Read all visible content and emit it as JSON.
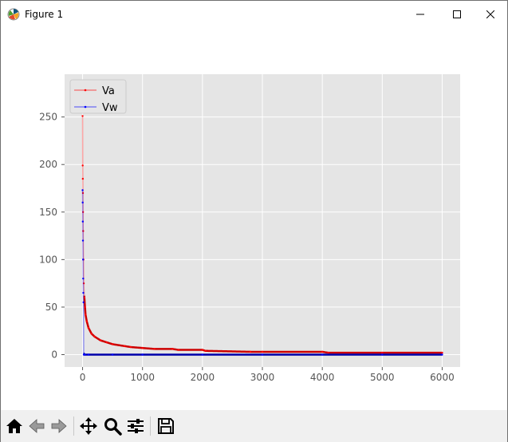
{
  "window": {
    "title": "Figure 1",
    "controls": {
      "minimize": "minimize",
      "maximize": "maximize",
      "close": "close"
    }
  },
  "toolbar": {
    "buttons": [
      {
        "name": "home-button",
        "icon": "home-icon"
      },
      {
        "name": "back-button",
        "icon": "back-arrow-icon"
      },
      {
        "name": "forward-button",
        "icon": "forward-arrow-icon"
      },
      {
        "name": "pan-button",
        "icon": "move-icon"
      },
      {
        "name": "zoom-button",
        "icon": "magnifier-icon"
      },
      {
        "name": "configure-subplots-button",
        "icon": "sliders-icon"
      },
      {
        "name": "save-button",
        "icon": "floppy-icon"
      }
    ]
  },
  "chart_data": {
    "type": "line",
    "title": "",
    "xlabel": "",
    "ylabel": "",
    "xlim": [
      -300,
      6300
    ],
    "ylim": [
      -13,
      295
    ],
    "xticks": [
      0,
      1000,
      2000,
      3000,
      4000,
      5000,
      6000
    ],
    "yticks": [
      0,
      50,
      100,
      150,
      200,
      250
    ],
    "grid": true,
    "legend_position": "upper left",
    "style": "ggplot",
    "series": [
      {
        "name": "Va",
        "color": "#ff0000",
        "marker": "dot",
        "x": [
          0,
          2,
          4,
          6,
          8,
          10,
          15,
          20,
          30,
          40,
          50,
          70,
          100,
          150,
          200,
          300,
          400,
          500,
          700,
          800,
          1000,
          1200,
          1500,
          1600,
          2000,
          2050,
          2800,
          3000,
          4000,
          4100,
          5000,
          6000
        ],
        "y": [
          251,
          199,
          185,
          170,
          150,
          130,
          100,
          75,
          60,
          50,
          42,
          35,
          28,
          22,
          19,
          15,
          13,
          11,
          9,
          8,
          7,
          6,
          6,
          5,
          5,
          4,
          3,
          3,
          3,
          2,
          2,
          2
        ]
      },
      {
        "name": "Vw",
        "color": "#0000ff",
        "marker": "dot",
        "x": [
          0,
          2,
          4,
          6,
          8,
          10,
          12,
          15,
          20,
          40,
          100,
          500,
          1000,
          2000,
          3000,
          4000,
          5000,
          6000
        ],
        "y": [
          173,
          160,
          140,
          120,
          100,
          80,
          65,
          55,
          0,
          0,
          0,
          0,
          0,
          0,
          0,
          0,
          0,
          0
        ]
      }
    ]
  }
}
